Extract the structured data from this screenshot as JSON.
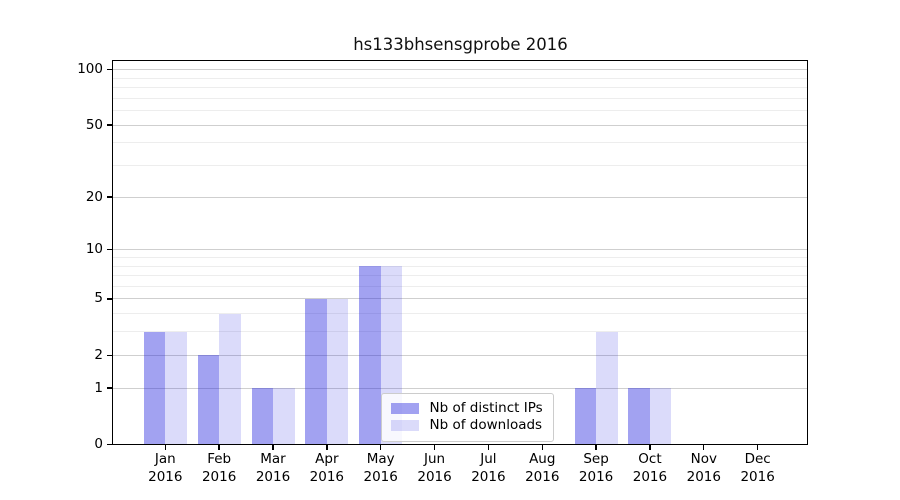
{
  "chart_data": {
    "type": "bar",
    "title": "hs133bhsensgprobe 2016",
    "categories": [
      "Jan",
      "Feb",
      "Mar",
      "Apr",
      "May",
      "Jun",
      "Jul",
      "Aug",
      "Sep",
      "Oct",
      "Nov",
      "Dec"
    ],
    "year_label": "2016",
    "series": [
      {
        "name": "Nb of distinct IPs",
        "color": "rgba(34,34,221,0.42)",
        "values": [
          3,
          2,
          1,
          5,
          8,
          0,
          0,
          0,
          1,
          1,
          0,
          0
        ]
      },
      {
        "name": "Nb of downloads",
        "color": "rgba(34,34,221,0.16)",
        "values": [
          3,
          4,
          1,
          5,
          8,
          0,
          0,
          0,
          3,
          1,
          0,
          0
        ]
      }
    ],
    "y_axis": {
      "scale": "log1p",
      "ticks": [
        0,
        1,
        2,
        5,
        10,
        20,
        50,
        100
      ],
      "minor_gridlines": [
        3,
        4,
        6,
        7,
        8,
        9,
        30,
        40,
        60,
        70,
        80,
        90
      ],
      "ylim": [
        0,
        112
      ]
    },
    "x_axis": {
      "tick_labels": [
        "Jan 2016",
        "Feb 2016",
        "Mar 2016",
        "Apr 2016",
        "May 2016",
        "Jun 2016",
        "Jul 2016",
        "Aug 2016",
        "Sep 2016",
        "Oct 2016",
        "Nov 2016",
        "Dec 2016"
      ]
    },
    "legend": {
      "position": "lower-center",
      "entries": [
        "Nb of distinct IPs",
        "Nb of downloads"
      ]
    },
    "grid": true
  }
}
